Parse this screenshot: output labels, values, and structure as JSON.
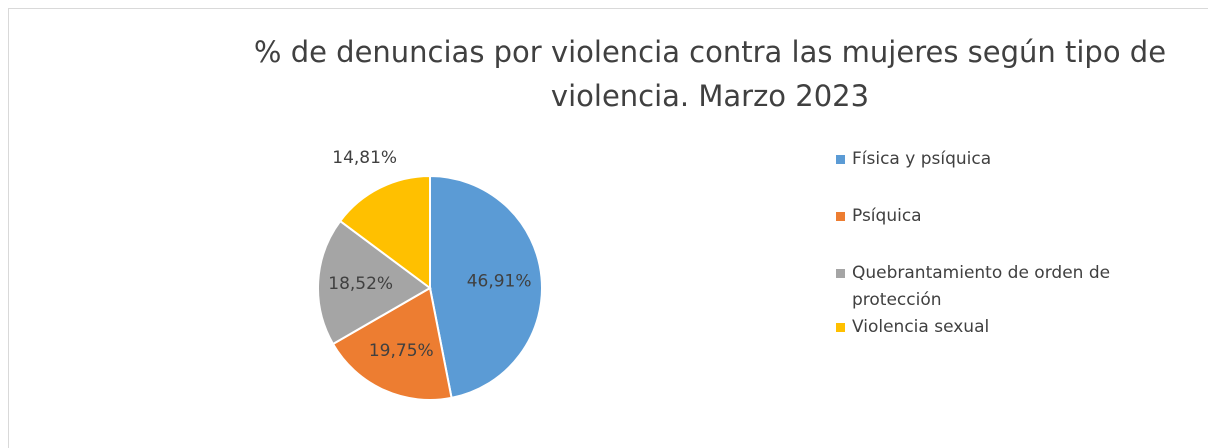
{
  "chart_data": {
    "type": "pie",
    "title": "%  de denuncias por violencia contra las mujeres según tipo de violencia.  Marzo 2023",
    "categories": [
      "Física y psíquica",
      "Psíquica",
      "Quebrantamiento de orden de protección",
      "Violencia sexual"
    ],
    "values": [
      46.91,
      19.75,
      18.52,
      14.81
    ],
    "value_labels": [
      "46,91%",
      "19,75%",
      "18,52%",
      "14,81%"
    ],
    "colors": [
      "#5b9bd5",
      "#ed7d31",
      "#a5a5a5",
      "#ffc000"
    ],
    "legend": "right"
  }
}
